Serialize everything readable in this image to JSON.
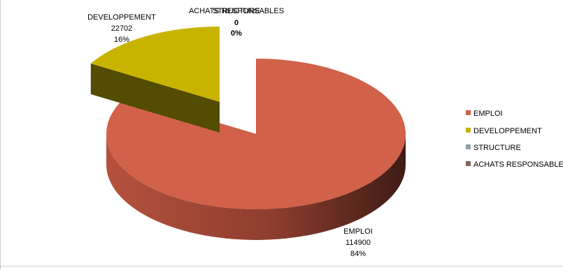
{
  "chart_data": {
    "type": "pie",
    "style": "3d",
    "categories": [
      "EMPLOI",
      "DEVELOPPEMENT",
      "STRUCTURE",
      "ACHATS RESPONSABLES"
    ],
    "values": [
      114900,
      22702,
      0,
      0
    ],
    "percent_labels": [
      "84%",
      "16%",
      "0%",
      "0%"
    ],
    "value_labels": [
      "114900",
      "22702",
      "0",
      "0"
    ],
    "colors": [
      "#D2614A",
      "#C8B400",
      "#8FA3A8",
      "#7E6558"
    ],
    "legend_position": "right",
    "title": ""
  }
}
